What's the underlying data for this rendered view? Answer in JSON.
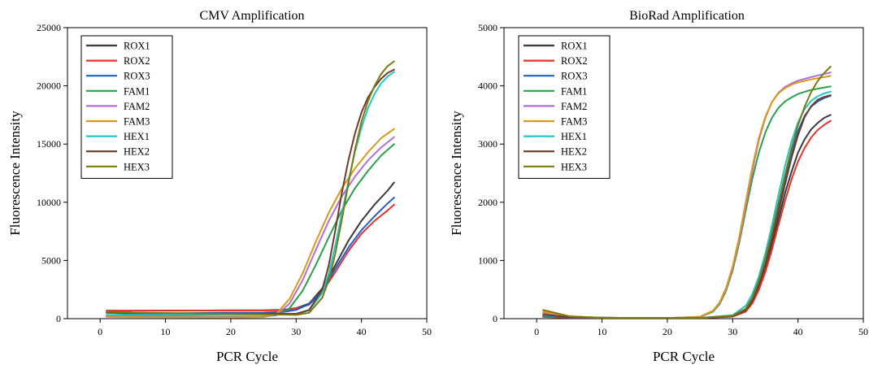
{
  "chart_data": [
    {
      "type": "line",
      "title": "CMV Amplification",
      "xlabel": "PCR Cycle",
      "ylabel": "Fluorescence Intensity",
      "xlim": [
        -5,
        50
      ],
      "ylim": [
        0,
        25000
      ],
      "xticks": [
        0,
        10,
        20,
        30,
        40,
        50
      ],
      "yticks": [
        0,
        5000,
        10000,
        15000,
        20000,
        25000
      ],
      "legend_placement": "top-left",
      "grid": false,
      "series": [
        {
          "name": "ROX1",
          "color": "#3a3a3a",
          "x": [
            1,
            5,
            10,
            15,
            20,
            25,
            28,
            30,
            32,
            34,
            36,
            38,
            40,
            42,
            44,
            45
          ],
          "y": [
            650,
            680,
            700,
            700,
            710,
            720,
            760,
            900,
            1300,
            2600,
            4600,
            6700,
            8400,
            9800,
            11000,
            11700
          ]
        },
        {
          "name": "ROX2",
          "color": "#e8342c",
          "x": [
            1,
            5,
            10,
            15,
            20,
            25,
            28,
            30,
            32,
            34,
            36,
            38,
            40,
            42,
            44,
            45
          ],
          "y": [
            700,
            690,
            680,
            690,
            700,
            700,
            720,
            850,
            1200,
            2300,
            4000,
            5800,
            7300,
            8400,
            9300,
            9800
          ]
        },
        {
          "name": "ROX3",
          "color": "#1f5fcf",
          "x": [
            1,
            5,
            10,
            15,
            20,
            25,
            28,
            30,
            32,
            34,
            36,
            38,
            40,
            42,
            44,
            45
          ],
          "y": [
            300,
            380,
            450,
            480,
            500,
            520,
            580,
            750,
            1250,
            2400,
            4300,
            6100,
            7600,
            8800,
            9900,
            10400
          ]
        },
        {
          "name": "FAM1",
          "color": "#2aa04a",
          "x": [
            1,
            5,
            10,
            15,
            20,
            25,
            27,
            29,
            31,
            33,
            35,
            37,
            39,
            41,
            43,
            45
          ],
          "y": [
            280,
            220,
            200,
            190,
            180,
            190,
            300,
            900,
            2400,
            4600,
            7000,
            9300,
            11200,
            12700,
            14000,
            15000
          ]
        },
        {
          "name": "FAM2",
          "color": "#b070d8",
          "x": [
            1,
            5,
            10,
            15,
            20,
            25,
            27,
            29,
            31,
            33,
            35,
            37,
            39,
            41,
            43,
            45
          ],
          "y": [
            200,
            180,
            150,
            140,
            130,
            150,
            350,
            1300,
            3300,
            5900,
            8400,
            10500,
            12200,
            13600,
            14700,
            15600
          ]
        },
        {
          "name": "FAM3",
          "color": "#d99a1a",
          "x": [
            1,
            5,
            10,
            15,
            20,
            25,
            27,
            29,
            31,
            33,
            35,
            37,
            39,
            41,
            43,
            45
          ],
          "y": [
            150,
            130,
            120,
            110,
            100,
            130,
            450,
            1700,
            3900,
            6600,
            9100,
            11200,
            12900,
            14300,
            15500,
            16300
          ]
        },
        {
          "name": "HEX1",
          "color": "#1fc8c8",
          "x": [
            1,
            5,
            10,
            15,
            20,
            25,
            30,
            32,
            34,
            35,
            36,
            37,
            38,
            39,
            40,
            41,
            42,
            43,
            44,
            45
          ],
          "y": [
            320,
            330,
            340,
            350,
            360,
            370,
            400,
            700,
            2200,
            3900,
            6300,
            9000,
            11800,
            14300,
            16400,
            18100,
            19300,
            20200,
            20800,
            21200
          ]
        },
        {
          "name": "HEX2",
          "color": "#6e3a2a",
          "x": [
            1,
            5,
            10,
            15,
            20,
            25,
            30,
            32,
            34,
            35,
            36,
            37,
            38,
            39,
            40,
            41,
            42,
            43,
            44,
            45
          ],
          "y": [
            500,
            480,
            470,
            460,
            450,
            440,
            420,
            750,
            2500,
            4600,
            7600,
            10800,
            13600,
            15900,
            17700,
            19000,
            19900,
            20600,
            21100,
            21400
          ]
        },
        {
          "name": "HEX3",
          "color": "#7a7a10",
          "x": [
            1,
            5,
            10,
            15,
            20,
            25,
            30,
            32,
            34,
            35,
            36,
            37,
            38,
            39,
            40,
            41,
            42,
            43,
            44,
            45
          ],
          "y": [
            600,
            520,
            480,
            440,
            400,
            360,
            320,
            500,
            1800,
            3300,
            5600,
            8500,
            11600,
            14500,
            16900,
            18700,
            20000,
            21000,
            21700,
            22100
          ]
        }
      ]
    },
    {
      "type": "line",
      "title": "BioRad Amplification",
      "xlabel": "PCR Cycle",
      "ylabel": "Fluorescence Intensity",
      "xlim": [
        -5,
        50
      ],
      "ylim": [
        0,
        5000
      ],
      "xticks": [
        0,
        10,
        20,
        30,
        40,
        50
      ],
      "yticks": [
        0,
        1000,
        2000,
        3000,
        4000,
        5000
      ],
      "legend_placement": "top-left",
      "grid": false,
      "series": [
        {
          "name": "ROX1",
          "color": "#3a3a3a",
          "x": [
            1,
            5,
            10,
            20,
            25,
            30,
            32,
            33,
            34,
            35,
            36,
            37,
            38,
            39,
            40,
            41,
            42,
            43,
            44,
            45
          ],
          "y": [
            40,
            20,
            15,
            10,
            12,
            40,
            130,
            280,
            520,
            850,
            1250,
            1700,
            2150,
            2520,
            2850,
            3080,
            3250,
            3360,
            3450,
            3500
          ]
        },
        {
          "name": "ROX2",
          "color": "#e8342c",
          "x": [
            1,
            5,
            10,
            20,
            25,
            30,
            32,
            33,
            34,
            35,
            36,
            37,
            38,
            39,
            40,
            41,
            42,
            43,
            44,
            45
          ],
          "y": [
            30,
            15,
            10,
            10,
            12,
            35,
            120,
            260,
            490,
            800,
            1180,
            1600,
            2020,
            2390,
            2700,
            2930,
            3110,
            3240,
            3330,
            3400
          ]
        },
        {
          "name": "ROX3",
          "color": "#1f5fcf",
          "x": [
            1,
            5,
            10,
            20,
            25,
            30,
            32,
            33,
            34,
            35,
            36,
            37,
            38,
            39,
            40,
            41,
            42,
            43,
            44,
            45
          ],
          "y": [
            50,
            20,
            15,
            10,
            12,
            45,
            160,
            330,
            600,
            960,
            1400,
            1900,
            2400,
            2850,
            3220,
            3480,
            3640,
            3730,
            3790,
            3830
          ]
        },
        {
          "name": "FAM1",
          "color": "#2aa04a",
          "x": [
            1,
            5,
            10,
            20,
            25,
            27,
            28,
            29,
            30,
            31,
            32,
            33,
            34,
            35,
            36,
            37,
            38,
            39,
            40,
            42,
            45
          ],
          "y": [
            100,
            30,
            15,
            10,
            30,
            120,
            250,
            480,
            830,
            1300,
            1850,
            2400,
            2850,
            3200,
            3450,
            3620,
            3730,
            3800,
            3860,
            3930,
            3990
          ]
        },
        {
          "name": "FAM2",
          "color": "#b070d8",
          "x": [
            1,
            5,
            10,
            20,
            25,
            27,
            28,
            29,
            30,
            31,
            32,
            33,
            34,
            35,
            36,
            37,
            38,
            39,
            40,
            42,
            45
          ],
          "y": [
            110,
            35,
            15,
            10,
            30,
            130,
            270,
            510,
            870,
            1350,
            1930,
            2530,
            3060,
            3450,
            3720,
            3880,
            3980,
            4040,
            4090,
            4150,
            4230
          ]
        },
        {
          "name": "FAM3",
          "color": "#d99a1a",
          "x": [
            1,
            5,
            10,
            20,
            25,
            27,
            28,
            29,
            30,
            31,
            32,
            33,
            34,
            35,
            36,
            37,
            38,
            39,
            40,
            42,
            45
          ],
          "y": [
            120,
            40,
            15,
            10,
            35,
            140,
            280,
            530,
            900,
            1400,
            2000,
            2600,
            3100,
            3470,
            3720,
            3870,
            3960,
            4020,
            4060,
            4110,
            4170
          ]
        },
        {
          "name": "HEX1",
          "color": "#1fc8c8",
          "x": [
            1,
            5,
            10,
            20,
            25,
            30,
            32,
            33,
            34,
            35,
            36,
            37,
            38,
            39,
            40,
            41,
            42,
            43,
            44,
            45
          ],
          "y": [
            60,
            25,
            15,
            10,
            12,
            60,
            220,
            420,
            720,
            1120,
            1600,
            2120,
            2620,
            3040,
            3370,
            3600,
            3740,
            3820,
            3870,
            3900
          ]
        },
        {
          "name": "HEX2",
          "color": "#6e3a2a",
          "x": [
            1,
            5,
            10,
            20,
            25,
            30,
            32,
            33,
            34,
            35,
            36,
            37,
            38,
            39,
            40,
            41,
            42,
            43,
            44,
            45
          ],
          "y": [
            70,
            25,
            15,
            10,
            12,
            40,
            140,
            300,
            560,
            910,
            1340,
            1820,
            2300,
            2760,
            3150,
            3460,
            3650,
            3760,
            3810,
            3840
          ]
        },
        {
          "name": "HEX3",
          "color": "#7a7a10",
          "x": [
            1,
            5,
            10,
            20,
            25,
            30,
            32,
            33,
            34,
            35,
            36,
            37,
            38,
            39,
            40,
            41,
            42,
            43,
            44,
            45
          ],
          "y": [
            150,
            40,
            15,
            10,
            12,
            50,
            170,
            360,
            650,
            1030,
            1480,
            1980,
            2470,
            2920,
            3320,
            3640,
            3890,
            4080,
            4220,
            4330
          ]
        }
      ]
    }
  ]
}
